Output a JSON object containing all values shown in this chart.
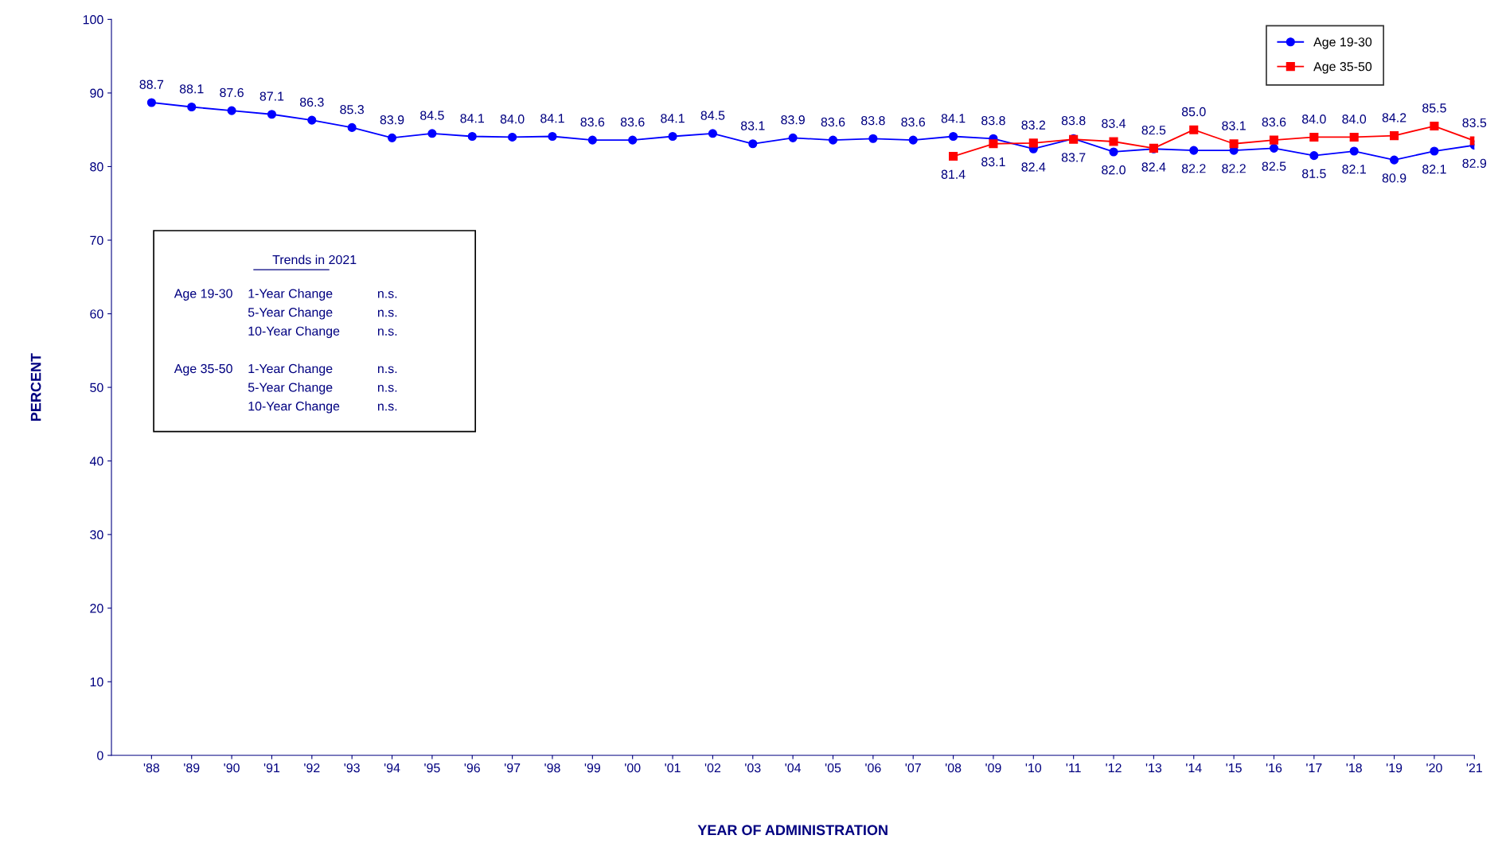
{
  "chart_data": {
    "type": "line",
    "xlabel": "YEAR OF ADMINISTRATION",
    "ylabel": "PERCENT",
    "categories": [
      "'88",
      "'89",
      "'90",
      "'91",
      "'92",
      "'93",
      "'94",
      "'95",
      "'96",
      "'97",
      "'98",
      "'99",
      "'00",
      "'01",
      "'02",
      "'03",
      "'04",
      "'05",
      "'06",
      "'07",
      "'08",
      "'09",
      "'10",
      "'11",
      "'12",
      "'13",
      "'14",
      "'15",
      "'16",
      "'17",
      "'18",
      "'19",
      "'20",
      "'21"
    ],
    "series": [
      {
        "name": "Age 19-30",
        "color": "#0000ff",
        "marker": "circle",
        "value_labels": [
          "88.7",
          "88.1",
          "87.6",
          "87.1",
          "86.3",
          "85.3",
          "83.9",
          "84.5",
          "84.1",
          "84.0",
          "84.1",
          "83.6",
          "83.6",
          "84.1",
          "84.5",
          "83.1",
          "83.9",
          "83.6",
          "83.8",
          "83.6",
          "84.1",
          "83.8",
          "82.4",
          "83.8",
          "82.0",
          "82.4",
          "82.2",
          "82.2",
          "82.5",
          "81.5",
          "82.1",
          "80.9",
          "82.1",
          "82.9"
        ],
        "values": [
          88.7,
          88.1,
          87.6,
          87.1,
          86.3,
          85.3,
          83.9,
          84.5,
          84.1,
          84.0,
          84.1,
          83.6,
          83.6,
          84.1,
          84.5,
          83.1,
          83.9,
          83.6,
          83.8,
          83.6,
          84.1,
          83.8,
          82.4,
          83.8,
          82.0,
          82.4,
          82.2,
          82.2,
          82.5,
          81.5,
          82.1,
          80.9,
          82.1,
          82.9
        ]
      },
      {
        "name": "Age 35-50",
        "color": "#ff0000",
        "marker": "square",
        "value_labels": [
          null,
          null,
          null,
          null,
          null,
          null,
          null,
          null,
          null,
          null,
          null,
          null,
          null,
          null,
          null,
          null,
          null,
          null,
          null,
          null,
          "81.4",
          "83.1",
          "83.2",
          "83.7",
          "83.4",
          "82.5",
          "85.0",
          "83.1",
          "83.6",
          "84.0",
          "84.0",
          "84.2",
          "85.5",
          "83.5"
        ],
        "values": [
          null,
          null,
          null,
          null,
          null,
          null,
          null,
          null,
          null,
          null,
          null,
          null,
          null,
          null,
          null,
          null,
          null,
          null,
          null,
          null,
          81.4,
          83.1,
          83.2,
          83.7,
          83.4,
          82.5,
          85.0,
          83.1,
          83.6,
          84.0,
          84.0,
          84.2,
          85.5,
          83.5
        ]
      }
    ],
    "ylim": [
      0,
      100
    ],
    "yticks": [
      0,
      10,
      20,
      30,
      40,
      50,
      60,
      70,
      80,
      90,
      100
    ],
    "grid": false,
    "legend": "top right",
    "line_style": "solid",
    "annotations": [
      "Trends in 2021",
      "Age 19-30",
      "1-Year Change",
      "n.s.",
      "5-Year Change",
      "n.s.",
      "10-Year Change",
      "n.s.",
      "Age 35-50",
      "1-Year Change",
      "n.s.",
      "5-Year Change",
      "n.s.",
      "10-Year Change",
      "n.s."
    ]
  }
}
